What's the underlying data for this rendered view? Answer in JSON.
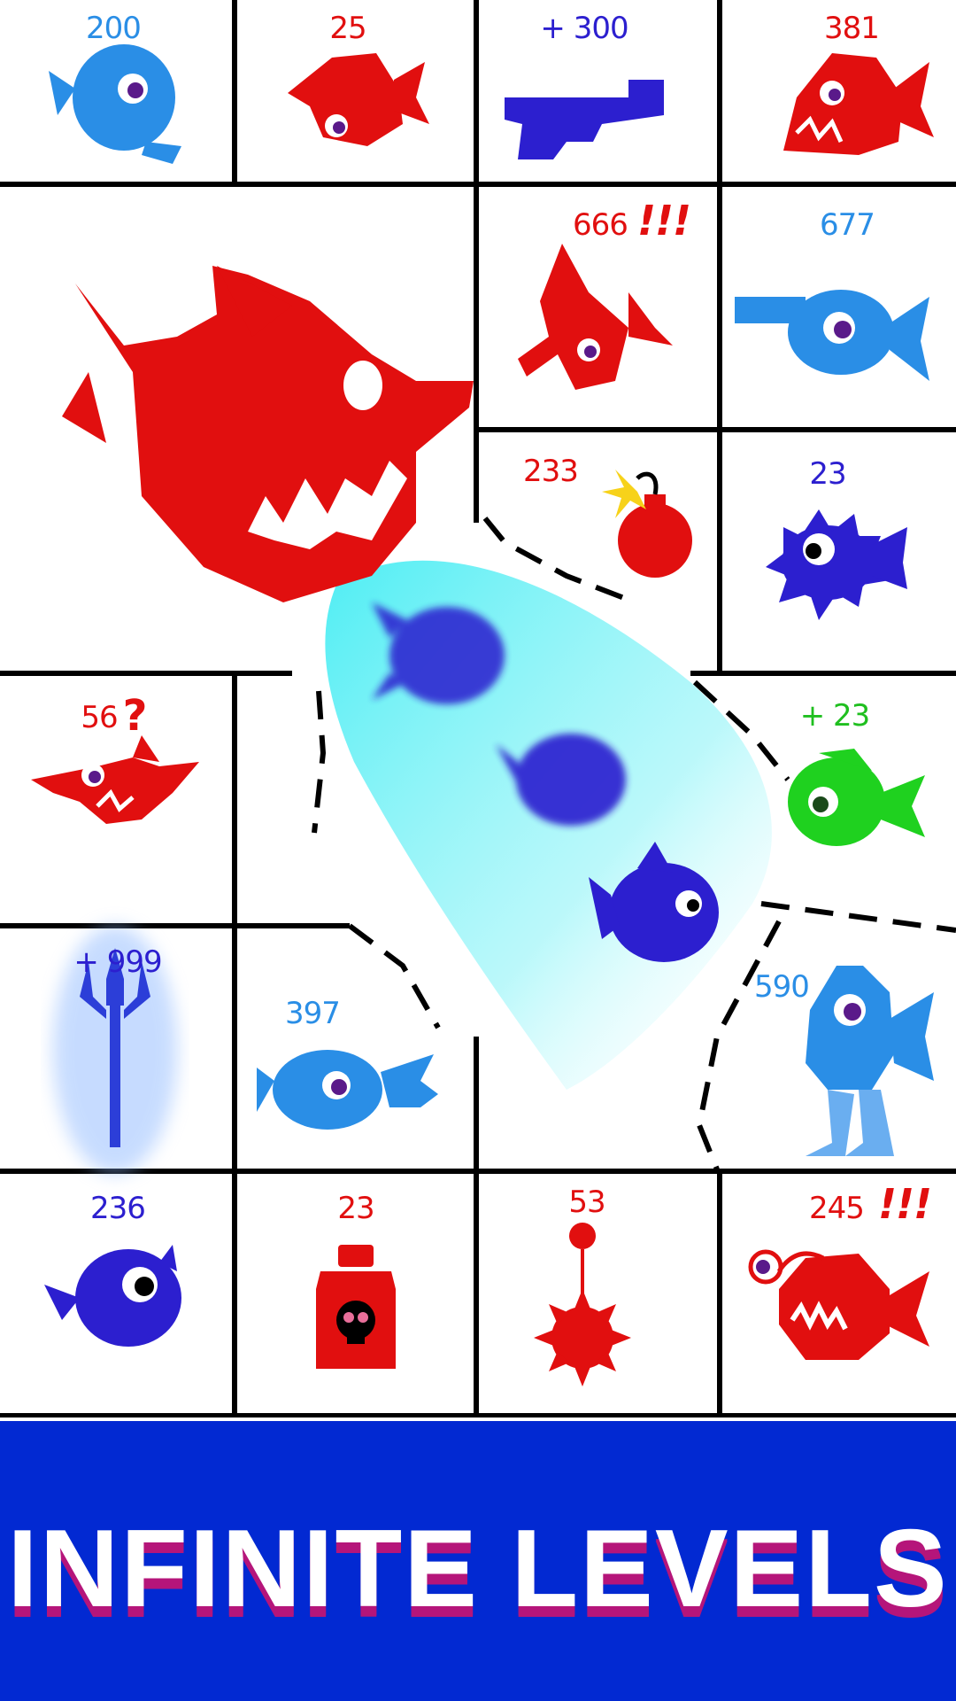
{
  "board": {
    "cells": [
      {
        "id": "r1c1",
        "value": "200",
        "color": "#2a8ee6",
        "creature": "blue-fish"
      },
      {
        "id": "r1c2",
        "value": "25",
        "color": "#e10f0f",
        "creature": "red-fish"
      },
      {
        "id": "r1c3",
        "value": "+ 300",
        "color": "#2c1fcf",
        "creature": "revolver"
      },
      {
        "id": "r1c4",
        "value": "381",
        "color": "#e10f0f",
        "creature": "red-piranha"
      },
      {
        "id": "big",
        "value": "",
        "color": "#e10f0f",
        "creature": "giant-red-shark"
      },
      {
        "id": "r2c3",
        "value": "666",
        "extra": "!!!",
        "color": "#e10f0f",
        "creature": "red-shark"
      },
      {
        "id": "r2c4",
        "value": "677",
        "color": "#2a8ee6",
        "creature": "blue-chainsaw-fish"
      },
      {
        "id": "r3c3",
        "value": "233",
        "color": "#e10f0f",
        "creature": "bomb"
      },
      {
        "id": "r3c4",
        "value": "23",
        "color": "#2c1fcf",
        "creature": "navy-pufferfish"
      },
      {
        "id": "r4c1",
        "value": "56",
        "extra": "?",
        "color": "#e10f0f",
        "creature": "red-hammerhead"
      },
      {
        "id": "r4c4",
        "value": "+ 23",
        "color": "#1fbf1f",
        "creature": "green-fish"
      },
      {
        "id": "r5c1",
        "value": "+ 999",
        "color": "#2c1fcf",
        "creature": "trident"
      },
      {
        "id": "r5c2",
        "value": "397",
        "color": "#2a8ee6",
        "creature": "blue-trident-fish"
      },
      {
        "id": "r5c4",
        "value": "590",
        "color": "#2a8ee6",
        "creature": "blue-walking-fish"
      },
      {
        "id": "r6c1",
        "value": "236",
        "color": "#2c1fcf",
        "creature": "navy-fish"
      },
      {
        "id": "r6c2",
        "value": "23",
        "color": "#e10f0f",
        "creature": "poison-bottle"
      },
      {
        "id": "r6c3",
        "value": "53",
        "color": "#e10f0f",
        "creature": "spiked-mine"
      },
      {
        "id": "r6c4",
        "value": "245",
        "extra": "!!!",
        "color": "#e10f0f",
        "creature": "red-anglerfish"
      }
    ],
    "player": {
      "creature": "navy-piranha-school",
      "count": 3
    }
  },
  "banner": {
    "title": "INFINITE LEVELS",
    "background": "#0229d2",
    "shadow": "#b5157a"
  }
}
